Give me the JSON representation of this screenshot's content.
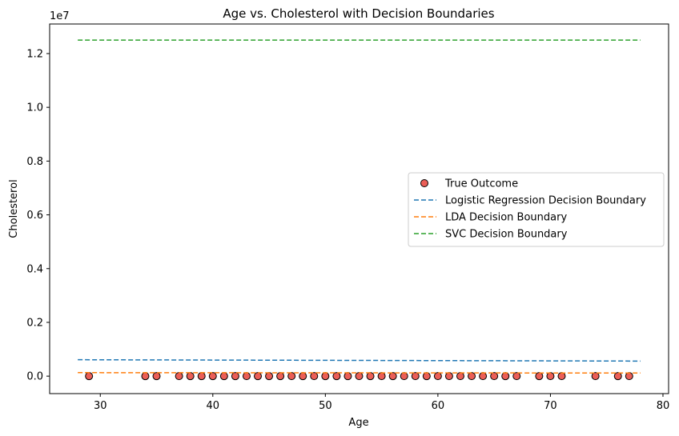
{
  "chart_data": {
    "type": "scatter",
    "title": "Age vs. Cholesterol with Decision Boundaries",
    "xlabel": "Age",
    "ylabel": "Cholesterol",
    "y_offset_label": "1e7",
    "xlim": [
      25.5,
      80.5
    ],
    "ylim": [
      -650000,
      13100000
    ],
    "x_ticks": [
      30,
      40,
      50,
      60,
      70,
      80
    ],
    "y_ticks": [
      0,
      2000000,
      4000000,
      6000000,
      8000000,
      10000000,
      12000000
    ],
    "y_tick_labels": [
      "0.0",
      "0.2",
      "0.4",
      "0.6",
      "0.8",
      "1.0",
      "1.2"
    ],
    "grid": false,
    "legend_position": "center-right",
    "series": [
      {
        "name": "True Outcome",
        "kind": "scatter",
        "color": "#e8423a",
        "edge_color": "#000000",
        "points": [
          {
            "x": 29,
            "y": 204
          },
          {
            "x": 34,
            "y": 210
          },
          {
            "x": 35,
            "y": 192
          },
          {
            "x": 37,
            "y": 250
          },
          {
            "x": 38,
            "y": 231
          },
          {
            "x": 39,
            "y": 199
          },
          {
            "x": 40,
            "y": 223
          },
          {
            "x": 41,
            "y": 204
          },
          {
            "x": 42,
            "y": 226
          },
          {
            "x": 43,
            "y": 247
          },
          {
            "x": 44,
            "y": 233
          },
          {
            "x": 45,
            "y": 208
          },
          {
            "x": 46,
            "y": 231
          },
          {
            "x": 47,
            "y": 243
          },
          {
            "x": 48,
            "y": 229
          },
          {
            "x": 49,
            "y": 266
          },
          {
            "x": 50,
            "y": 219
          },
          {
            "x": 51,
            "y": 227
          },
          {
            "x": 52,
            "y": 212
          },
          {
            "x": 53,
            "y": 246
          },
          {
            "x": 54,
            "y": 239
          },
          {
            "x": 55,
            "y": 250
          },
          {
            "x": 56,
            "y": 236
          },
          {
            "x": 57,
            "y": 241
          },
          {
            "x": 58,
            "y": 248
          },
          {
            "x": 59,
            "y": 234
          },
          {
            "x": 60,
            "y": 253
          },
          {
            "x": 61,
            "y": 243
          },
          {
            "x": 62,
            "y": 263
          },
          {
            "x": 63,
            "y": 254
          },
          {
            "x": 64,
            "y": 246
          },
          {
            "x": 65,
            "y": 253
          },
          {
            "x": 66,
            "y": 228
          },
          {
            "x": 67,
            "y": 254
          },
          {
            "x": 69,
            "y": 239
          },
          {
            "x": 70,
            "y": 269
          },
          {
            "x": 71,
            "y": 265
          },
          {
            "x": 74,
            "y": 269
          },
          {
            "x": 76,
            "y": 197
          },
          {
            "x": 77,
            "y": 304
          }
        ]
      },
      {
        "name": "Logistic Regression Decision Boundary",
        "kind": "line",
        "color": "#1f77b4",
        "x": [
          28,
          78
        ],
        "y": [
          610000,
          560000
        ]
      },
      {
        "name": "LDA Decision Boundary",
        "kind": "line",
        "color": "#ff7f0e",
        "x": [
          28,
          78
        ],
        "y": [
          130000,
          115000
        ]
      },
      {
        "name": "SVC Decision Boundary",
        "kind": "line",
        "color": "#2ca02c",
        "x": [
          28,
          78
        ],
        "y": [
          12500000,
          12500000
        ]
      }
    ]
  }
}
